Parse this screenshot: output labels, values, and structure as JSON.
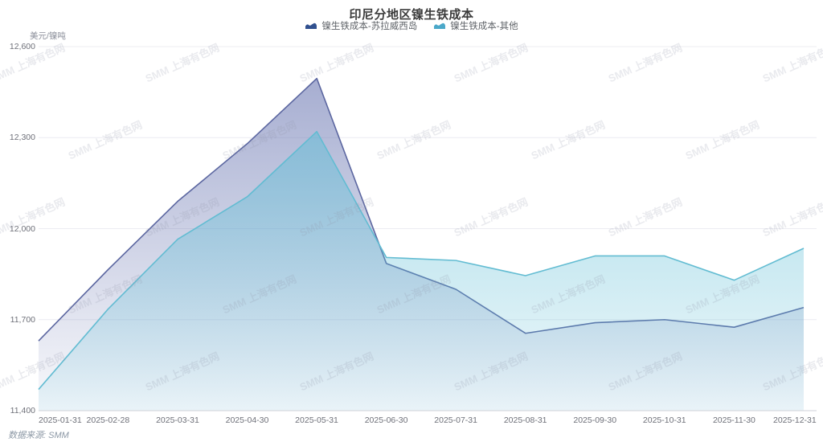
{
  "title": "印尼分地区镍生铁成本",
  "footer": {
    "source_text": "数据来源: SMM"
  },
  "watermark_text": "SMM 上海有色网",
  "chart_data": {
    "type": "area",
    "title": "印尼分地区镍生铁成本",
    "ylabel": "美元/镍吨",
    "xlabel": "",
    "ylim": [
      11400,
      12600
    ],
    "y_interval": 300,
    "grid": true,
    "legend_position": "top",
    "categories": [
      "2025-01-31",
      "2025-02-28",
      "2025-03-31",
      "2025-04-30",
      "2025-05-31",
      "2025-06-30",
      "2025-07-31",
      "2025-08-31",
      "2025-09-30",
      "2025-10-31",
      "2025-11-30",
      "2025-12-31"
    ],
    "series": [
      {
        "name": "镍生铁成本-苏拉威西岛",
        "values": [
          11630,
          11865,
          12090,
          12280,
          12495,
          11885,
          11800,
          11655,
          11690,
          11700,
          11675,
          11740
        ],
        "line_color": "#5b66a0",
        "icon_color": "#31518f",
        "area_top": "rgba(99,112,174,0.62)",
        "area_bottom": "rgba(99,112,174,0.04)"
      },
      {
        "name": "镍生铁成本-其他",
        "values": [
          11470,
          11735,
          11965,
          12105,
          12320,
          11905,
          11895,
          11845,
          11910,
          11910,
          11830,
          11935
        ],
        "line_color": "#62bcd2",
        "icon_color": "#4ba8c9",
        "area_top": "rgba(96,190,214,0.66)",
        "area_bottom": "rgba(96,190,214,0.10)"
      }
    ]
  }
}
